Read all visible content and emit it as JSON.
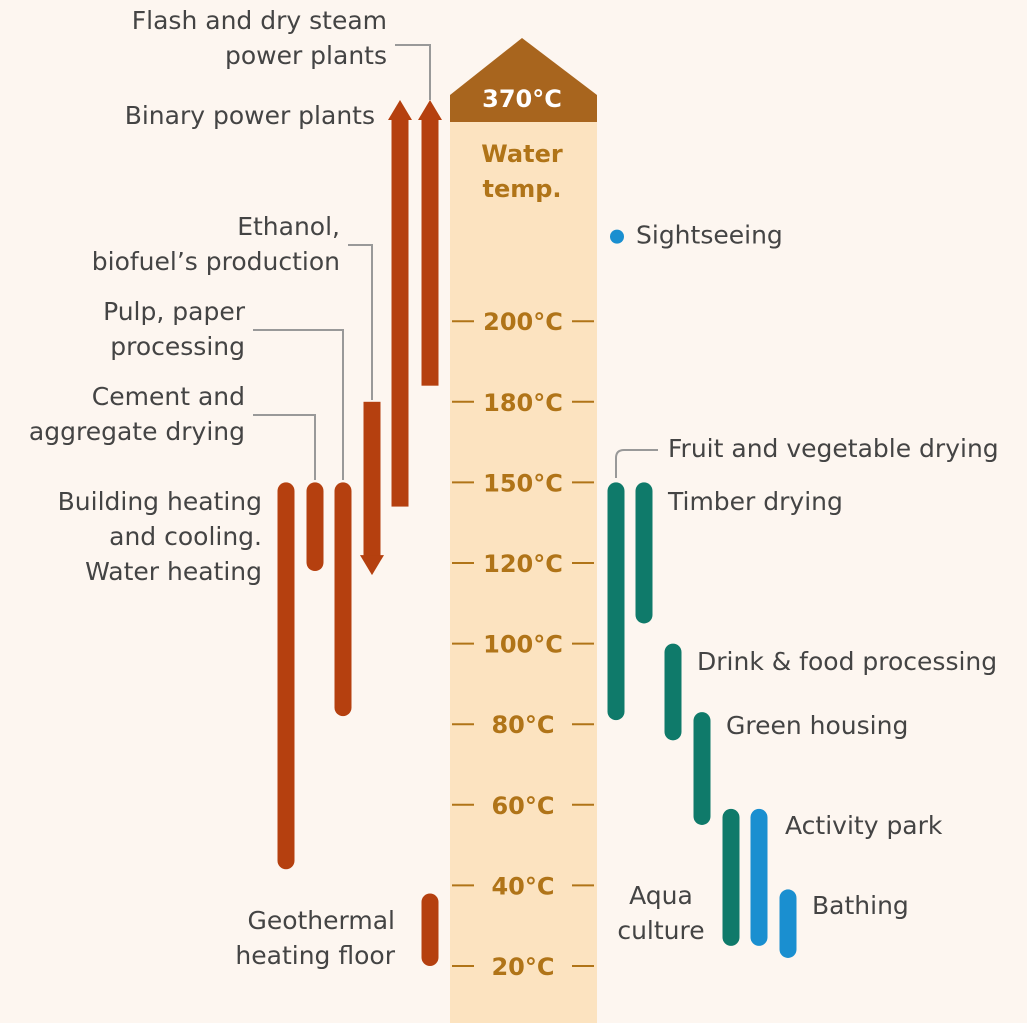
{
  "chart_data": {
    "type": "range",
    "top_label": "370°C",
    "ylabel": [
      "Water",
      "temp."
    ],
    "ylim": [
      20,
      370
    ],
    "yticks": [
      {
        "value": 20,
        "label": "20°C"
      },
      {
        "value": 40,
        "label": "40°C"
      },
      {
        "value": 60,
        "label": "60°C"
      },
      {
        "value": 80,
        "label": "80°C"
      },
      {
        "value": 100,
        "label": "100°C"
      },
      {
        "value": 120,
        "label": "120°C"
      },
      {
        "value": 150,
        "label": "150°C"
      },
      {
        "value": 180,
        "label": "180°C"
      },
      {
        "value": 200,
        "label": "200°C"
      }
    ],
    "ranges": [
      {
        "label": [
          "Flash and dry steam",
          "power plants"
        ],
        "low": 184,
        "high": 370,
        "color": "#b5400f",
        "arrow": "up"
      },
      {
        "label": [
          "Binary power plants"
        ],
        "low": 141,
        "high": 370,
        "color": "#b5400f",
        "arrow": "up"
      },
      {
        "label": [
          "Ethanol,",
          "biofuel’s production"
        ],
        "low": 117,
        "high": 180,
        "color": "#b5400f",
        "arrow": "down"
      },
      {
        "label": [
          "Pulp, paper",
          "processing"
        ],
        "low": 82,
        "high": 150,
        "color": "#b5400f"
      },
      {
        "label": [
          "Cement and",
          "aggregate drying"
        ],
        "low": 118,
        "high": 150,
        "color": "#b5400f"
      },
      {
        "label": [
          "Building heating",
          "and cooling.",
          "Water heating"
        ],
        "low": 44,
        "high": 150,
        "color": "#b5400f"
      },
      {
        "label": [
          "Geothermal",
          "heating floor"
        ],
        "low": 20,
        "high": 38,
        "color": "#b5400f"
      },
      {
        "label": [
          "Fruit and vegetable drying"
        ],
        "low": 81,
        "high": 150,
        "color": "#0f7a6a"
      },
      {
        "label": [
          "Timber drying"
        ],
        "low": 105,
        "high": 150,
        "color": "#0f7a6a"
      },
      {
        "label": [
          "Drink & food processing"
        ],
        "low": 76,
        "high": 100,
        "color": "#0f7a6a"
      },
      {
        "label": [
          "Green housing"
        ],
        "low": 55,
        "high": 83,
        "color": "#0f7a6a"
      },
      {
        "label": [
          "Aqua",
          "culture"
        ],
        "low": 25,
        "high": 59,
        "color": "#0f7a6a"
      },
      {
        "label": [
          "Activity park"
        ],
        "low": 25,
        "high": 59,
        "color": "#1a8fd0"
      },
      {
        "label": [
          "Bathing"
        ],
        "low": 22,
        "high": 39,
        "color": "#1a8fd0"
      }
    ],
    "points": [
      {
        "label": "Sightseeing",
        "value": 265,
        "color": "#1a8fd0"
      }
    ]
  }
}
